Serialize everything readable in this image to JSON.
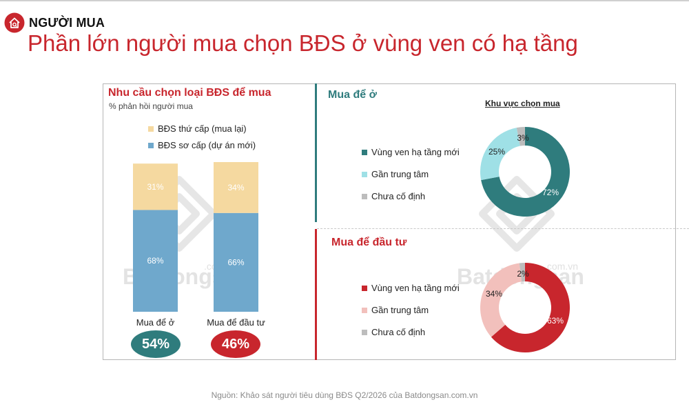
{
  "header": {
    "brand": "NGƯỜI MUA",
    "headline": "Phần lớn người mua chọn BĐS ở vùng ven có hạ tầng"
  },
  "colors": {
    "red": "#c8262d",
    "teal": "#2f7c7d",
    "primary": "#6fa8cc",
    "secondary": "#f5d9a0",
    "light_teal": "#9fe0e6",
    "gray": "#bdbdbd",
    "pink": "#f2c0bc"
  },
  "watermark": {
    "text": "Batdongsan",
    "domain": ".com.vn"
  },
  "chart_data": [
    {
      "type": "bar",
      "title": "Nhu cầu chọn loại BĐS để mua",
      "subtitle": "% phản hồi người mua",
      "categories": [
        "Mua để ở",
        "Mua để đầu tư"
      ],
      "series": [
        {
          "name": "BĐS sơ cấp (dự án mới)",
          "values": [
            68,
            66
          ],
          "labels": [
            "68%",
            "66%"
          ]
        },
        {
          "name": "BĐS thứ cấp (mua lại)",
          "values": [
            31,
            34
          ],
          "labels": [
            "31%",
            "34%"
          ]
        }
      ],
      "ylim": [
        0,
        100
      ],
      "shares": [
        "54%",
        "46%"
      ]
    },
    {
      "type": "pie",
      "title": "Mua để ở",
      "subtitle": "Khu vực chọn mua",
      "labels": [
        "Vùng ven hạ tầng mới",
        "Gần trung tâm",
        "Chưa cố định"
      ],
      "values": [
        72,
        25,
        3
      ],
      "value_labels": [
        "72%",
        "25%",
        "3%"
      ]
    },
    {
      "type": "pie",
      "title": "Mua để đầu tư",
      "labels": [
        "Vùng ven hạ tầng mới",
        "Gần trung tâm",
        "Chưa cố định"
      ],
      "values": [
        63,
        34,
        2
      ],
      "value_labels": [
        "63%",
        "34%",
        "2%"
      ]
    }
  ],
  "footer": {
    "source": "Nguồn: Khảo sát người tiêu dùng BĐS Q2/2026 của Batdongsan.com.vn"
  }
}
